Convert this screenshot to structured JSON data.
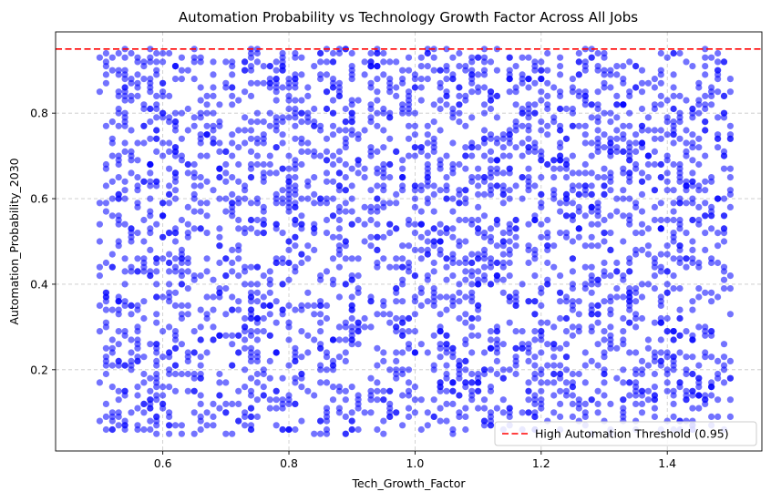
{
  "chart_data": {
    "type": "scatter",
    "title": "Automation Probability vs Technology Growth Factor Across All Jobs",
    "xlabel": "Tech_Growth_Factor",
    "ylabel": "Automation_Probability_2030",
    "xlim": [
      0.43,
      1.55
    ],
    "ylim": [
      0.01,
      0.99
    ],
    "xticks": [
      0.6,
      0.8,
      1.0,
      1.2,
      1.4
    ],
    "xtick_labels": [
      "0.6",
      "0.8",
      "1.0",
      "1.2",
      "1.4"
    ],
    "yticks": [
      0.2,
      0.4,
      0.6,
      0.8
    ],
    "ytick_labels": [
      "0.2",
      "0.4",
      "0.6",
      "0.8"
    ],
    "grid": true,
    "marker_color": "#0000ff",
    "marker_alpha": 0.55,
    "x_range": [
      0.5,
      1.5
    ],
    "y_range": [
      0.05,
      0.95
    ],
    "approx_point_count": 3000,
    "threshold": {
      "value": 0.95,
      "label": "High Automation Threshold (0.95)",
      "color": "#ff0000",
      "style": "dashed"
    },
    "legend": {
      "position": "bottom-right"
    }
  }
}
